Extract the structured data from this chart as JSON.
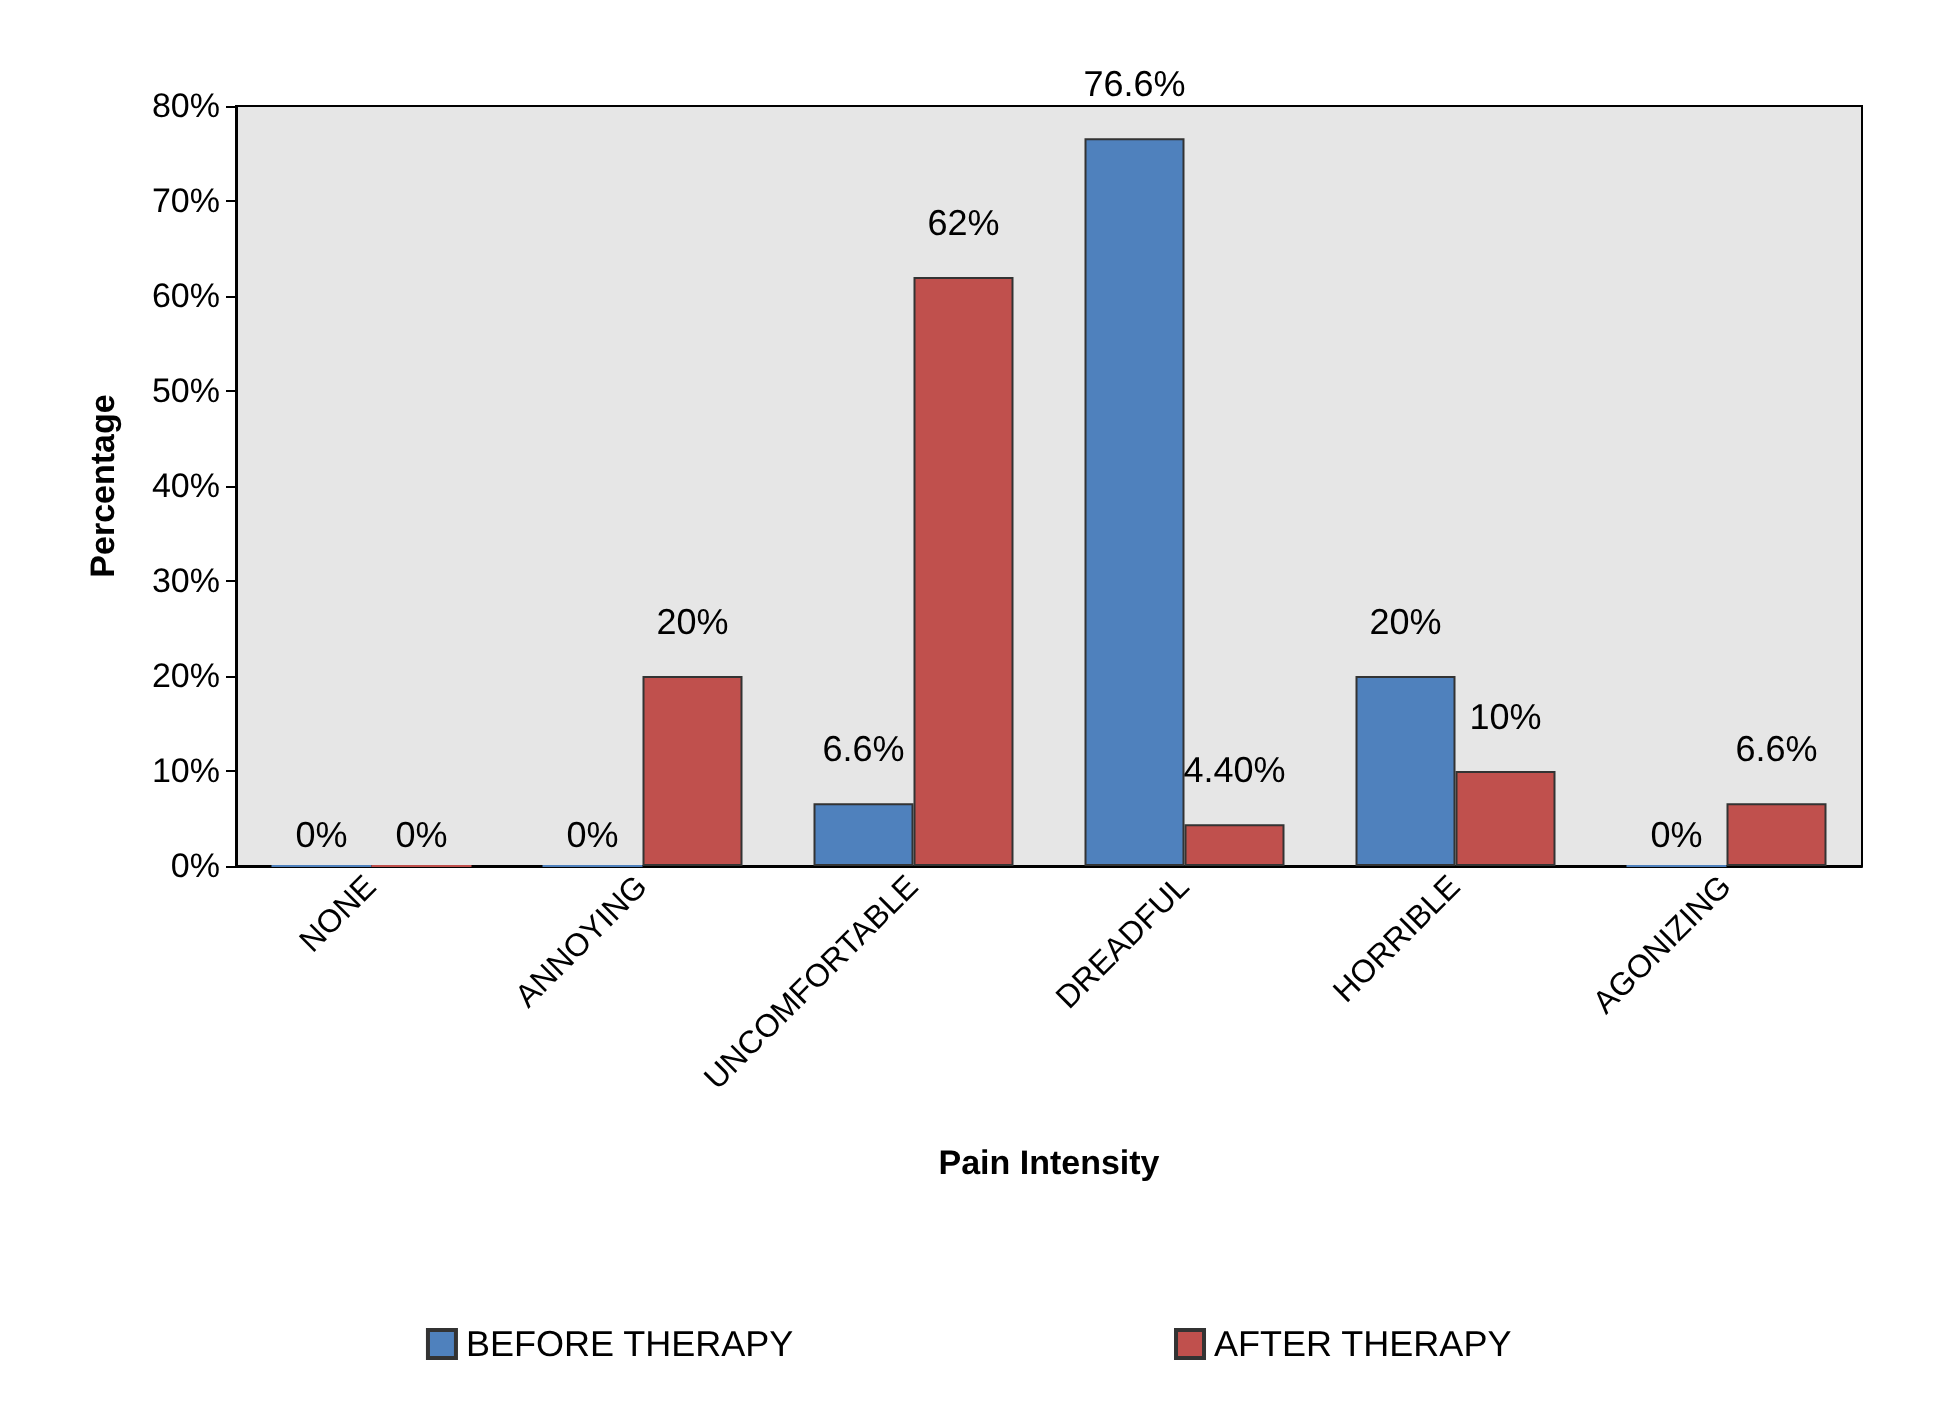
{
  "chart_data": {
    "type": "bar",
    "xlabel": "Pain Intensity",
    "ylabel": "Percentage",
    "categories": [
      "NONE",
      "ANNOYING",
      "UNCOMFORTABLE",
      "DREADFUL",
      "HORRIBLE",
      "AGONIZING"
    ],
    "series": [
      {
        "name": "BEFORE THERAPY",
        "color": "#4f81bd",
        "values": [
          0,
          0,
          6.6,
          76.6,
          20,
          0
        ],
        "value_labels": [
          "0%",
          "0%",
          "6.6%",
          "76.6%",
          "20%",
          "0%"
        ]
      },
      {
        "name": "AFTER THERAPY",
        "color": "#c0504d",
        "values": [
          0,
          20,
          62,
          4.4,
          10,
          6.6
        ],
        "value_labels": [
          "0%",
          "20%",
          "62%",
          "4.40%",
          "10%",
          "6.6%"
        ]
      }
    ],
    "ylim": [
      0,
      80
    ],
    "yticks": [
      {
        "value": 0,
        "label": "0%"
      },
      {
        "value": 10,
        "label": "10%"
      },
      {
        "value": 20,
        "label": "20%"
      },
      {
        "value": 30,
        "label": "30%"
      },
      {
        "value": 40,
        "label": "40%"
      },
      {
        "value": 50,
        "label": "50%"
      },
      {
        "value": 60,
        "label": "60%"
      },
      {
        "value": 70,
        "label": "70%"
      },
      {
        "value": 80,
        "label": "80%"
      }
    ],
    "grid": false,
    "legend": "bottom"
  }
}
